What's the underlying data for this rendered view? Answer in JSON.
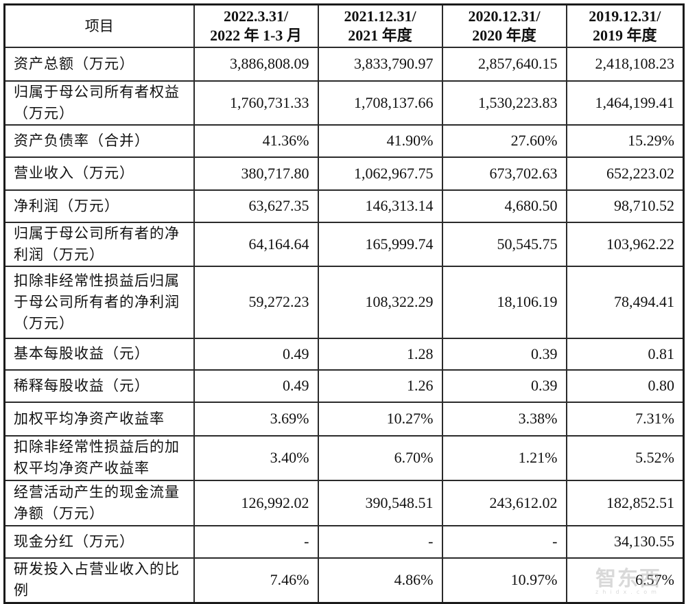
{
  "table": {
    "headers": [
      {
        "line1": "项目",
        "line2": ""
      },
      {
        "line1": "2022.3.31/",
        "line2": "2022 年 1-3 月"
      },
      {
        "line1": "2021.12.31/",
        "line2": "2021 年度"
      },
      {
        "line1": "2020.12.31/",
        "line2": "2020 年度"
      },
      {
        "line1": "2019.12.31/",
        "line2": "2019 年度"
      }
    ],
    "rows": [
      {
        "label": "资产总额（万元）",
        "values": [
          "3,886,808.09",
          "3,833,790.97",
          "2,857,640.15",
          "2,418,108.23"
        ]
      },
      {
        "label": "归属于母公司所有者权益（万元）",
        "values": [
          "1,760,731.33",
          "1,708,137.66",
          "1,530,223.83",
          "1,464,199.41"
        ]
      },
      {
        "label": "资产负债率（合并）",
        "values": [
          "41.36%",
          "41.90%",
          "27.60%",
          "15.29%"
        ]
      },
      {
        "label": "营业收入（万元）",
        "values": [
          "380,717.80",
          "1,062,967.75",
          "673,702.63",
          "652,223.02"
        ]
      },
      {
        "label": "净利润（万元）",
        "values": [
          "63,627.35",
          "146,313.14",
          "4,680.50",
          "98,710.52"
        ]
      },
      {
        "label": "归属于母公司所有者的净利润（万元）",
        "values": [
          "64,164.64",
          "165,999.74",
          "50,545.75",
          "103,962.22"
        ]
      },
      {
        "label": "扣除非经常性损益后归属于母公司所有者的净利润（万元）",
        "values": [
          "59,272.23",
          "108,322.29",
          "18,106.19",
          "78,494.41"
        ]
      },
      {
        "label": "基本每股收益（元）",
        "values": [
          "0.49",
          "1.28",
          "0.39",
          "0.81"
        ]
      },
      {
        "label": "稀释每股收益（元）",
        "values": [
          "0.49",
          "1.26",
          "0.39",
          "0.80"
        ]
      },
      {
        "label": "加权平均净资产收益率",
        "values": [
          "3.69%",
          "10.27%",
          "3.38%",
          "7.31%"
        ]
      },
      {
        "label": "扣除非经常性损益后的加权平均净资产收益率",
        "values": [
          "3.40%",
          "6.70%",
          "1.21%",
          "5.52%"
        ]
      },
      {
        "label": "经营活动产生的现金流量净额（万元）",
        "values": [
          "126,992.02",
          "390,548.51",
          "243,612.02",
          "182,852.51"
        ]
      },
      {
        "label": "现金分红（万元）",
        "values": [
          "-",
          "-",
          "-",
          "34,130.55"
        ]
      },
      {
        "label": "研发投入占营业收入的比例",
        "values": [
          "7.46%",
          "4.86%",
          "10.97%",
          "6.57%"
        ]
      }
    ]
  },
  "watermark": {
    "text": "智东西",
    "sub": "zhidx.com"
  }
}
